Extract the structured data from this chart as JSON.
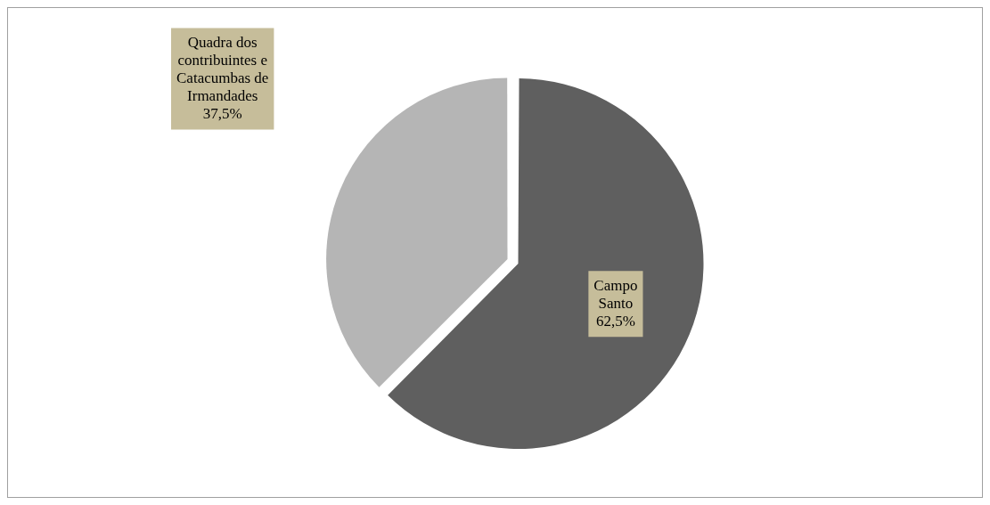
{
  "chart_data": {
    "type": "pie",
    "categories": [
      "Campo Santo",
      "Quadra dos contribuintes e Catacumbas de Irmandades"
    ],
    "values": [
      62.5,
      37.5
    ],
    "colors": [
      "#5f5f5f",
      "#b5b5b5"
    ],
    "value_labels": [
      "62,5%",
      "37,5%"
    ]
  }
}
